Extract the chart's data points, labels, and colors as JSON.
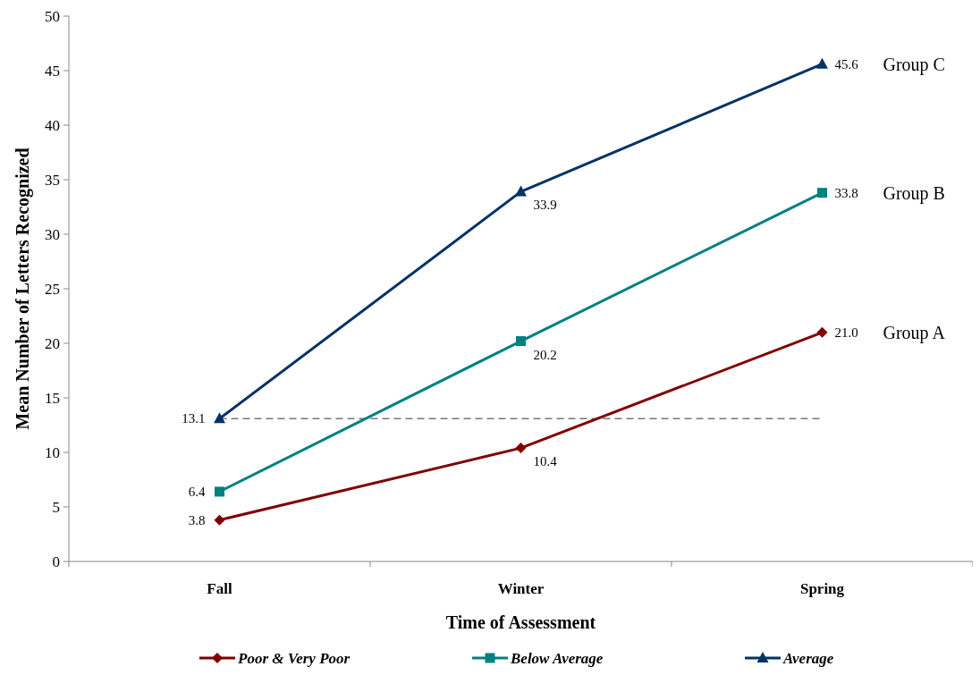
{
  "chart_data": {
    "type": "line",
    "xlabel": "Time of Assessment",
    "ylabel": "Mean Number of Letters Recognized",
    "categories": [
      "Fall",
      "Winter",
      "Spring"
    ],
    "series": [
      {
        "name": "Poor & Very Poor",
        "color": "#800000",
        "marker": "diamond",
        "values": [
          3.8,
          10.4,
          21.0
        ],
        "value_labels": [
          "3.8",
          "10.4",
          "21.0"
        ]
      },
      {
        "name": "Below Average",
        "color": "#008080",
        "marker": "square",
        "values": [
          6.4,
          20.2,
          33.8
        ],
        "value_labels": [
          "6.4",
          "20.2",
          "33.8"
        ]
      },
      {
        "name": "Average",
        "color": "#003366",
        "marker": "triangle",
        "values": [
          13.1,
          33.9,
          45.6
        ],
        "value_labels": [
          "13.1",
          "33.9",
          "45.6"
        ]
      }
    ],
    "ylim": [
      0,
      50
    ],
    "yticks": [
      0,
      5,
      10,
      15,
      20,
      25,
      30,
      35,
      40,
      45,
      50
    ],
    "ref_lines": [
      {
        "axis": "y",
        "value": 13.1,
        "color": "#333333",
        "line_style": "dashed"
      }
    ],
    "annotations": [
      "Group C",
      "Group B",
      "Group A"
    ],
    "legend": "bottom",
    "grid": false,
    "line_style": "solid"
  }
}
